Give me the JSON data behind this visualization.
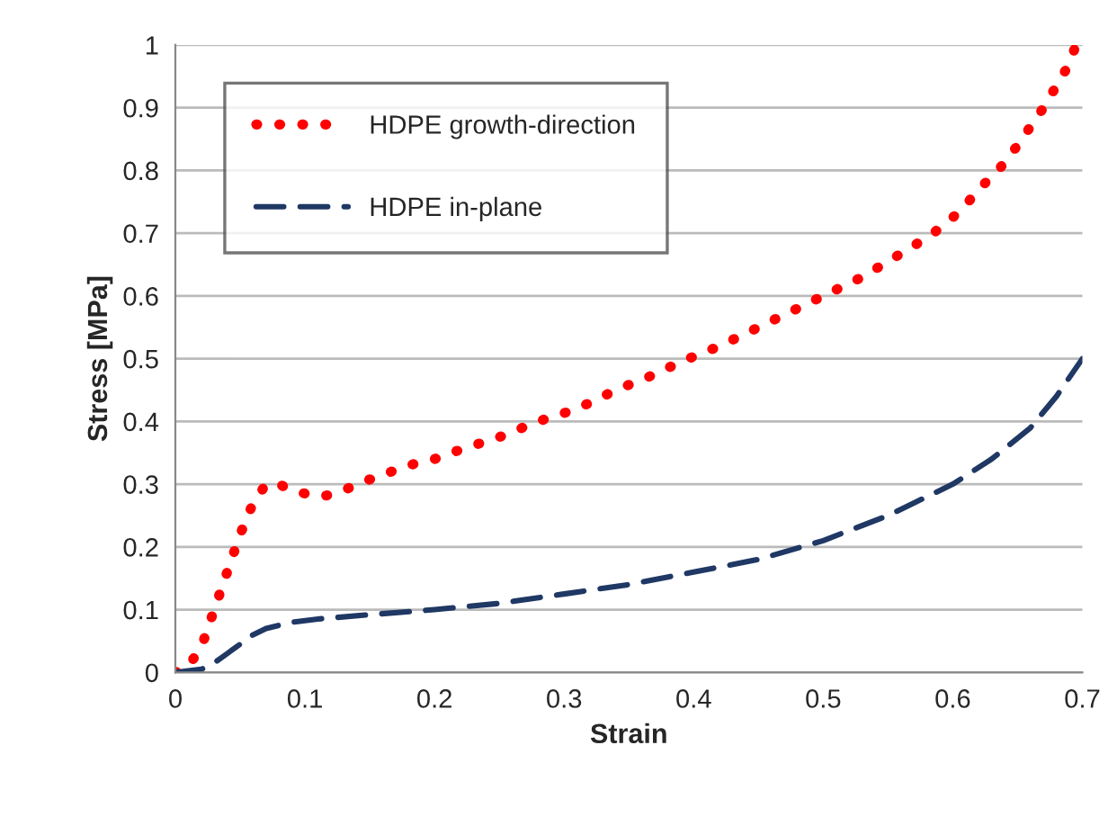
{
  "chart_data": {
    "type": "line",
    "xlabel": "Strain",
    "ylabel": "Stress [MPa]",
    "xlim": [
      0,
      0.7
    ],
    "ylim": [
      0,
      1
    ],
    "xticks": [
      0,
      0.1,
      0.2,
      0.3,
      0.4,
      0.5,
      0.6,
      0.7
    ],
    "yticks": [
      0,
      0.1,
      0.2,
      0.3,
      0.4,
      0.5,
      0.6,
      0.7,
      0.8,
      0.9,
      1
    ],
    "grid": "y",
    "legend": "top left",
    "series": [
      {
        "name": "HDPE growth-direction",
        "color": "#ff0000",
        "line_style": "dotted",
        "x": [
          0,
          0.01,
          0.02,
          0.03,
          0.04,
          0.05,
          0.06,
          0.07,
          0.08,
          0.09,
          0.1,
          0.11,
          0.12,
          0.13,
          0.14,
          0.16,
          0.18,
          0.2,
          0.22,
          0.25,
          0.28,
          0.31,
          0.34,
          0.37,
          0.39,
          0.42,
          0.45,
          0.48,
          0.5,
          0.53,
          0.55,
          0.57,
          0.585,
          0.6,
          0.61,
          0.62,
          0.635,
          0.65,
          0.66,
          0.67,
          0.68,
          0.69,
          0.695
        ],
        "values": [
          0,
          0.01,
          0.04,
          0.1,
          0.16,
          0.22,
          0.27,
          0.3,
          0.3,
          0.29,
          0.285,
          0.28,
          0.283,
          0.29,
          0.3,
          0.315,
          0.33,
          0.34,
          0.355,
          0.375,
          0.4,
          0.42,
          0.45,
          0.475,
          0.495,
          0.52,
          0.55,
          0.58,
          0.6,
          0.63,
          0.655,
          0.68,
          0.7,
          0.725,
          0.745,
          0.77,
          0.8,
          0.84,
          0.87,
          0.9,
          0.935,
          0.97,
          1.0
        ]
      },
      {
        "name": "HDPE in-plane",
        "color": "#1f3864",
        "line_style": "dashed",
        "x": [
          0,
          0.02,
          0.03,
          0.04,
          0.05,
          0.06,
          0.07,
          0.09,
          0.11,
          0.15,
          0.2,
          0.25,
          0.3,
          0.35,
          0.4,
          0.45,
          0.5,
          0.55,
          0.6,
          0.63,
          0.66,
          0.68,
          0.7
        ],
        "values": [
          0,
          0.005,
          0.015,
          0.03,
          0.045,
          0.06,
          0.07,
          0.08,
          0.085,
          0.092,
          0.1,
          0.11,
          0.125,
          0.14,
          0.16,
          0.18,
          0.21,
          0.25,
          0.3,
          0.34,
          0.39,
          0.44,
          0.5
        ]
      }
    ]
  }
}
